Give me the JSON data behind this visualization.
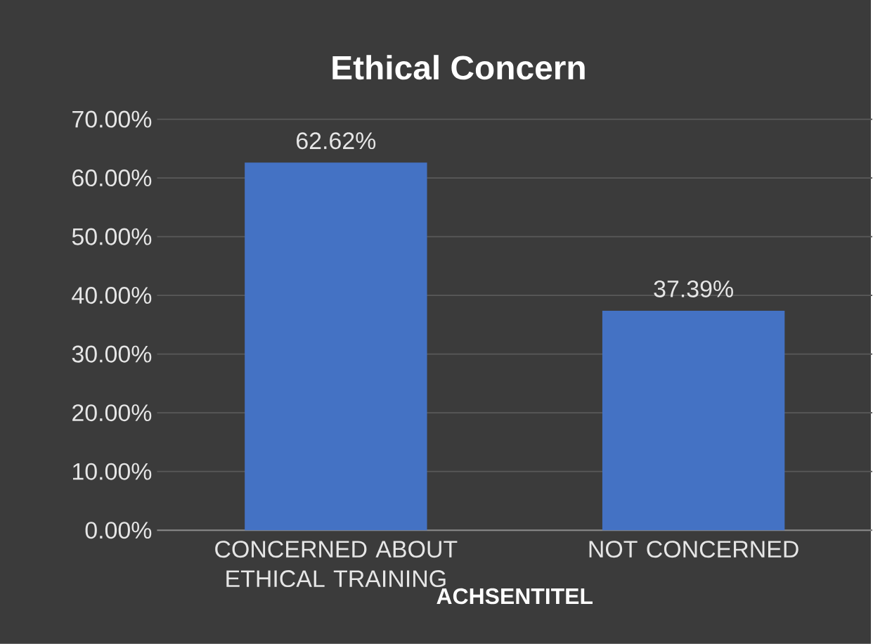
{
  "chart_data": {
    "type": "bar",
    "title": "Ethical Concern",
    "xlabel": "ACHSENTITEL",
    "categories": [
      "CONCERNED ABOUT ETHICAL TRAINING",
      "NOT CONCERNED"
    ],
    "values": [
      62.62,
      37.39
    ],
    "value_labels": [
      "62.62%",
      "37.39%"
    ],
    "color": "#4472c4",
    "ylim": [
      0,
      70
    ],
    "yticks": [
      {
        "value": 0,
        "label": "0.00%"
      },
      {
        "value": 10,
        "label": "10.00%"
      },
      {
        "value": 20,
        "label": "20.00%"
      },
      {
        "value": 30,
        "label": "30.00%"
      },
      {
        "value": 40,
        "label": "40.00%"
      },
      {
        "value": 50,
        "label": "50.00%"
      },
      {
        "value": 60,
        "label": "60.00%"
      },
      {
        "value": 70,
        "label": "70.00%"
      }
    ],
    "grid": "y"
  }
}
